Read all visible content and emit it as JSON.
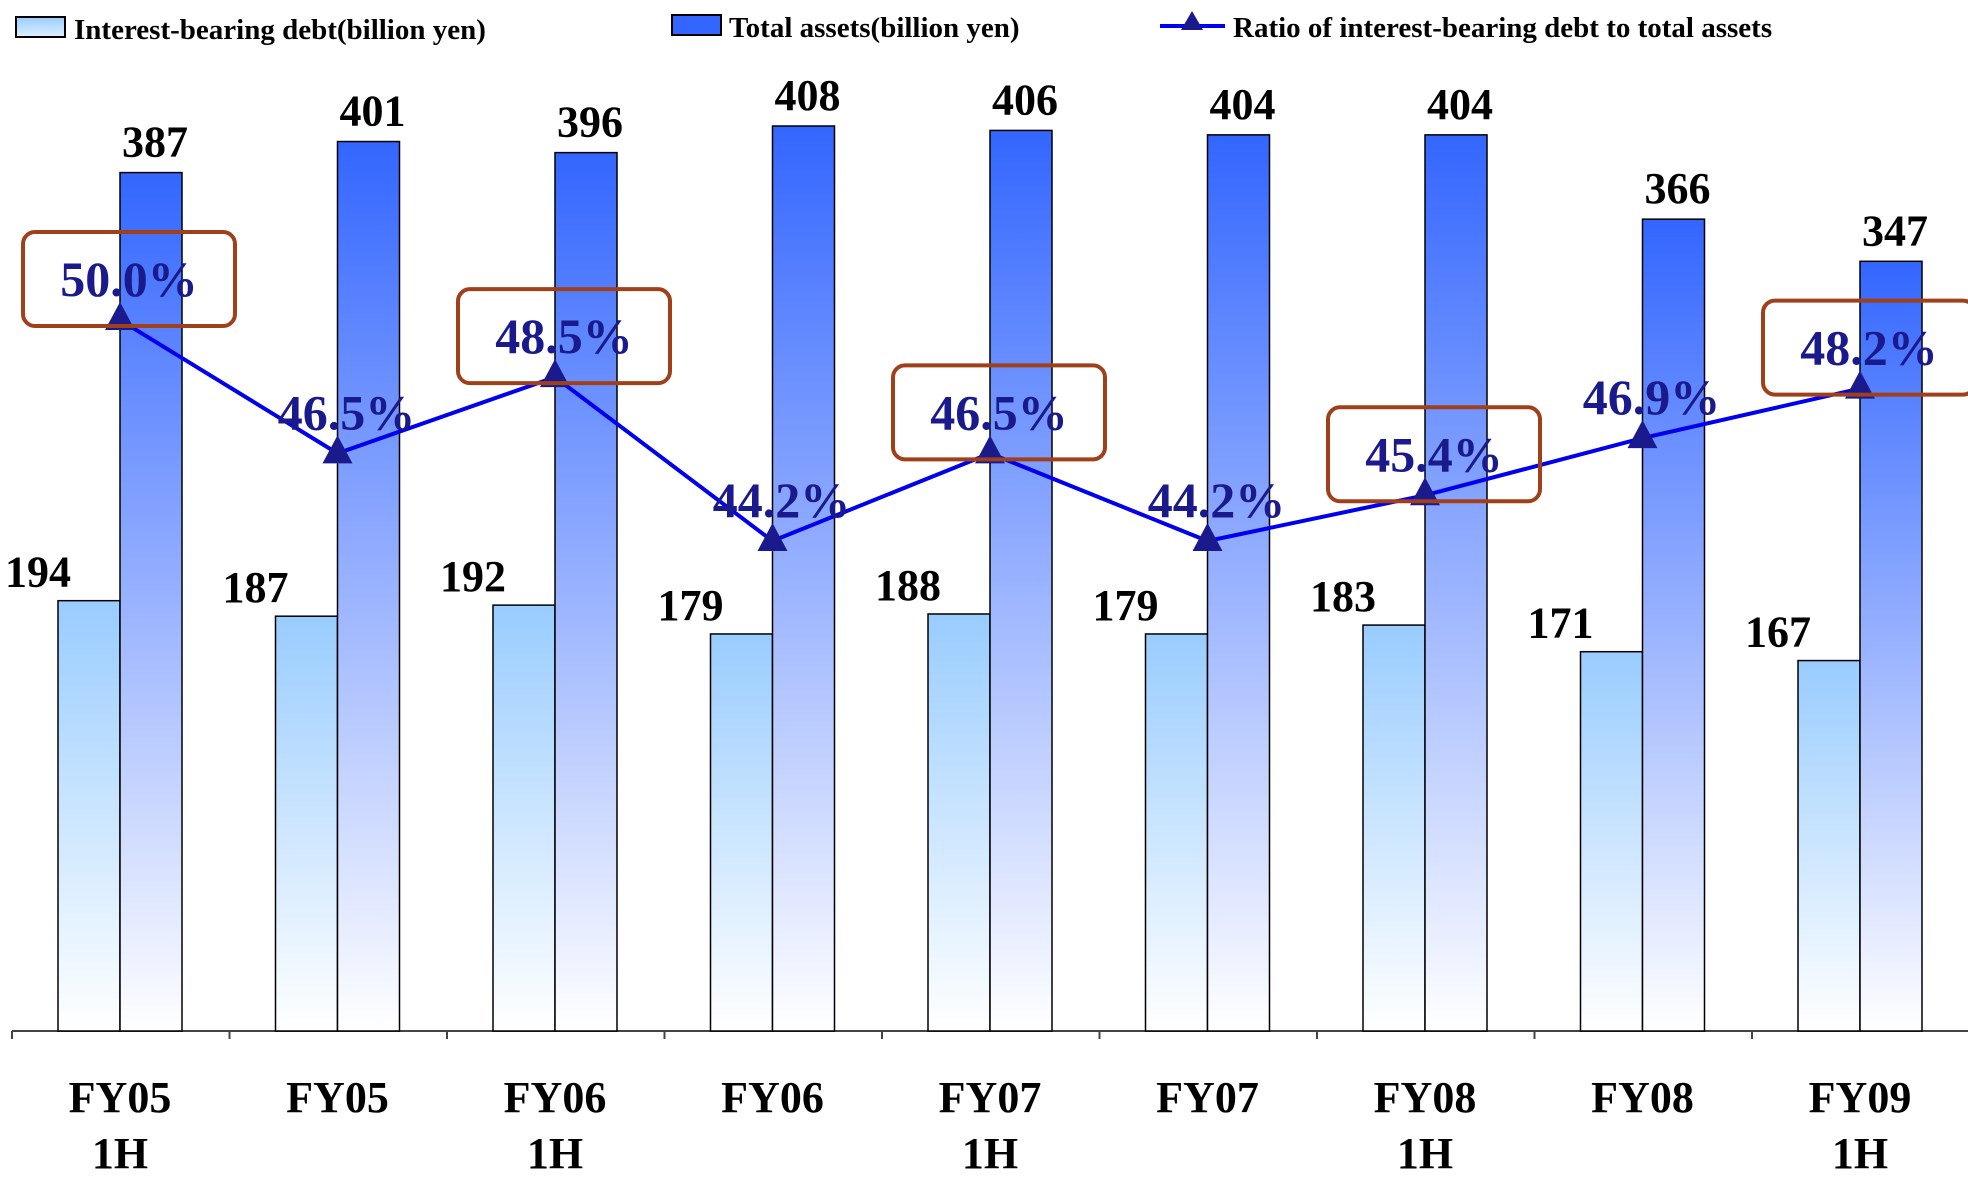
{
  "chart_data": {
    "type": "bar",
    "categories": [
      "FY05\n1H",
      "FY05",
      "FY06\n1H",
      "FY06",
      "FY07\n1H",
      "FY07",
      "FY08\n1H",
      "FY08",
      "FY09\n1H"
    ],
    "series": [
      {
        "name": "Interest-bearing debt(billion yen)",
        "type": "bar",
        "values": [
          194,
          187,
          192,
          179,
          188,
          179,
          183,
          171,
          167
        ],
        "value_labels": [
          "194",
          "187",
          "192",
          "179",
          "188",
          "179",
          "183",
          "171",
          "167"
        ]
      },
      {
        "name": "Total assets(billion yen)",
        "type": "bar",
        "values": [
          387,
          401,
          396,
          408,
          406,
          404,
          404,
          366,
          347
        ],
        "value_labels": [
          "387",
          "401",
          "396",
          "408",
          "406",
          "404",
          "404",
          "366",
          "347"
        ]
      },
      {
        "name": "Ratio of interest-bearing debt to total assets",
        "type": "line",
        "values": [
          50.0,
          46.5,
          48.5,
          44.2,
          46.5,
          44.2,
          45.4,
          46.9,
          48.2
        ],
        "value_labels": [
          "50.0%",
          "46.5%",
          "48.5%",
          "44.2%",
          "46.5%",
          "44.2%",
          "45.4%",
          "46.9%",
          "48.2%"
        ],
        "highlighted": [
          true,
          false,
          true,
          false,
          true,
          false,
          true,
          false,
          true
        ]
      }
    ],
    "legend": "top",
    "grid": false,
    "colors": {
      "debt_bar": "#99ccff",
      "assets_bar": "#3366ff",
      "ratio_line": "#0000ee",
      "ratio_label": "#1a1a8c",
      "highlight_box": "#a0401a",
      "value_label": "#000000"
    }
  }
}
